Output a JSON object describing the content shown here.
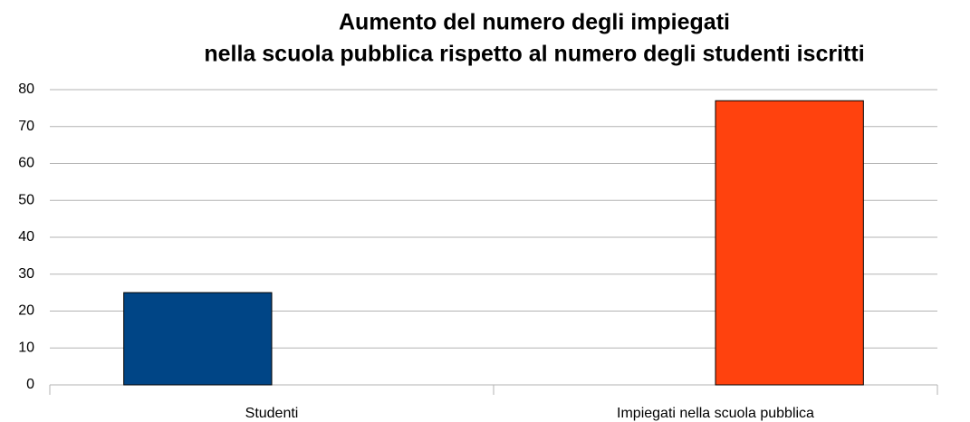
{
  "chart_data": {
    "type": "bar",
    "title": [
      "Aumento del numero degli impiegati",
      "nella scuola pubblica rispetto al numero degli studenti iscritti"
    ],
    "categories": [
      "Studenti",
      "Impiegati nella scuola pubblica"
    ],
    "series": [
      {
        "color": "#004586",
        "values": [
          25,
          0
        ]
      },
      {
        "color": "#ff420e",
        "values": [
          0,
          77
        ]
      }
    ],
    "ylim": [
      0,
      80
    ],
    "yticks": [
      0,
      10,
      20,
      30,
      40,
      50,
      60,
      70,
      80
    ],
    "grid": true
  }
}
